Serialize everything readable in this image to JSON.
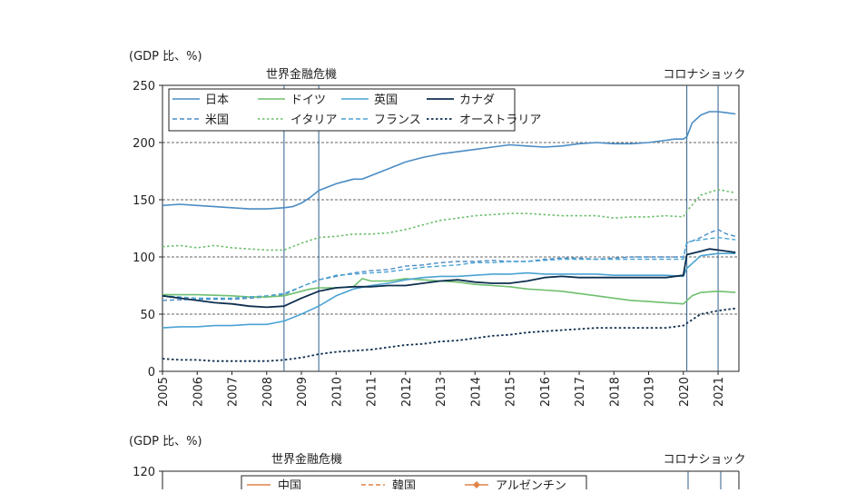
{
  "chart_data": [
    {
      "type": "line",
      "ylabel": "(GDP 比、%)",
      "xlim": [
        2005,
        2021.6
      ],
      "ylim": [
        0,
        250
      ],
      "yticks": [
        0,
        50,
        100,
        150,
        200,
        250
      ],
      "xticks": [
        "2005",
        "2006",
        "2007",
        "2008",
        "2009",
        "2010",
        "2011",
        "2012",
        "2013",
        "2014",
        "2015",
        "2016",
        "2017",
        "2018",
        "2019",
        "2020",
        "2021"
      ],
      "gridlines": [
        50,
        100,
        150,
        200
      ],
      "annotations": [
        {
          "label": "世界金融危機",
          "from": 2008.5,
          "to": 2009.5
        },
        {
          "label": "コロナショック",
          "from": 2020.1,
          "to": 2021.0
        }
      ],
      "legend_position": "top-left",
      "series": [
        {
          "name": "日本",
          "color": "#4a8cc4",
          "dash": "solid",
          "width": 1.6,
          "x": [
            2005,
            2005.5,
            2006,
            2006.5,
            2007,
            2007.5,
            2008,
            2008.5,
            2008.75,
            2009,
            2009.25,
            2009.5,
            2009.75,
            2010,
            2010.25,
            2010.5,
            2010.75,
            2011,
            2011.5,
            2012,
            2012.5,
            2013,
            2013.25,
            2013.5,
            2013.75,
            2014,
            2014.5,
            2015,
            2015.5,
            2016,
            2016.5,
            2017,
            2017.5,
            2018,
            2018.5,
            2019,
            2019.5,
            2019.75,
            2020,
            2020.1,
            2020.25,
            2020.5,
            2020.75,
            2021,
            2021.25,
            2021.5
          ],
          "y": [
            145,
            146,
            145,
            144,
            143,
            142,
            142,
            143,
            144,
            147,
            152,
            158,
            161,
            164,
            166,
            168,
            168,
            171,
            177,
            183,
            187,
            190,
            191,
            192,
            193,
            194,
            196,
            198,
            197,
            196,
            197,
            199,
            200,
            199,
            199,
            200,
            202,
            203,
            203,
            205,
            217,
            224,
            227,
            227,
            226,
            225
          ]
        },
        {
          "name": "米国",
          "color": "#4a8cc4",
          "dash": "dash",
          "width": 1.4,
          "x": [
            2005,
            2006,
            2007,
            2007.5,
            2008,
            2008.5,
            2009,
            2009.5,
            2010,
            2010.5,
            2011,
            2011.5,
            2012,
            2012.5,
            2013,
            2013.5,
            2014,
            2014.5,
            2015,
            2015.5,
            2016,
            2016.5,
            2017,
            2017.5,
            2018,
            2018.5,
            2019,
            2019.5,
            2020,
            2020.1,
            2020.5,
            2020.75,
            2021,
            2021.25,
            2021.5
          ],
          "y": [
            62,
            63,
            63,
            64,
            65,
            67,
            74,
            80,
            83,
            86,
            88,
            89,
            92,
            93,
            95,
            96,
            96,
            97,
            96,
            96,
            98,
            99,
            99,
            98,
            99,
            100,
            100,
            100,
            100,
            112,
            117,
            121,
            124,
            120,
            118
          ]
        },
        {
          "name": "ドイツ",
          "color": "#6fbf6f",
          "dash": "solid",
          "width": 1.6,
          "x": [
            2005,
            2006,
            2007,
            2007.5,
            2008,
            2008.5,
            2009,
            2009.25,
            2009.5,
            2010,
            2010.5,
            2010.75,
            2011,
            2011.5,
            2012,
            2012.5,
            2013,
            2013.5,
            2014,
            2014.5,
            2015,
            2015.5,
            2016,
            2016.5,
            2017,
            2017.5,
            2018,
            2018.5,
            2019,
            2019.5,
            2020,
            2020.25,
            2020.5,
            2021,
            2021.5
          ],
          "y": [
            67,
            67,
            66,
            65,
            65,
            66,
            70,
            72,
            73,
            73,
            74,
            81,
            79,
            79,
            81,
            80,
            79,
            78,
            76,
            75,
            74,
            72,
            71,
            70,
            68,
            66,
            64,
            62,
            61,
            60,
            59,
            66,
            69,
            70,
            69
          ]
        },
        {
          "name": "イタリア",
          "color": "#6fbf6f",
          "dash": "dot",
          "width": 1.6,
          "x": [
            2005,
            2005.5,
            2006,
            2006.5,
            2007,
            2007.5,
            2008,
            2008.5,
            2009,
            2009.5,
            2010,
            2010.5,
            2011,
            2011.5,
            2012,
            2012.5,
            2013,
            2013.5,
            2014,
            2014.5,
            2015,
            2015.5,
            2016,
            2016.5,
            2017,
            2017.5,
            2018,
            2018.5,
            2019,
            2019.5,
            2020,
            2020.1,
            2020.5,
            2021,
            2021.5
          ],
          "y": [
            109,
            110,
            108,
            110,
            108,
            107,
            106,
            106,
            112,
            117,
            118,
            120,
            120,
            121,
            124,
            128,
            132,
            134,
            136,
            137,
            138,
            138,
            137,
            136,
            136,
            136,
            134,
            135,
            135,
            136,
            135,
            140,
            154,
            159,
            156
          ]
        },
        {
          "name": "英国",
          "color": "#4ba3d3",
          "dash": "solid",
          "width": 1.6,
          "x": [
            2005,
            2005.5,
            2006,
            2006.5,
            2007,
            2007.5,
            2008,
            2008.5,
            2009,
            2009.5,
            2010,
            2010.5,
            2011,
            2011.5,
            2012,
            2012.5,
            2013,
            2013.5,
            2014,
            2014.5,
            2015,
            2015.5,
            2016,
            2016.5,
            2017,
            2017.5,
            2018,
            2018.5,
            2019,
            2019.5,
            2020,
            2020.1,
            2020.5,
            2021,
            2021.5
          ],
          "y": [
            38,
            39,
            39,
            40,
            40,
            41,
            41,
            44,
            50,
            57,
            66,
            72,
            75,
            77,
            80,
            82,
            83,
            83,
            84,
            85,
            85,
            86,
            85,
            85,
            85,
            85,
            84,
            84,
            84,
            84,
            83,
            90,
            101,
            103,
            103
          ]
        },
        {
          "name": "フランス",
          "color": "#4ba3d3",
          "dash": "dash",
          "width": 1.4,
          "x": [
            2005,
            2006,
            2007,
            2008,
            2008.5,
            2009,
            2009.5,
            2010,
            2010.5,
            2011,
            2011.5,
            2012,
            2012.5,
            2013,
            2013.5,
            2014,
            2014.5,
            2015,
            2015.5,
            2016,
            2016.5,
            2017,
            2017.5,
            2018,
            2018.5,
            2019,
            2019.5,
            2020,
            2020.1,
            2020.5,
            2021,
            2021.5
          ],
          "y": [
            66,
            64,
            64,
            66,
            68,
            74,
            80,
            84,
            85,
            86,
            87,
            89,
            91,
            92,
            93,
            95,
            95,
            96,
            96,
            97,
            98,
            98,
            98,
            98,
            98,
            98,
            98,
            98,
            113,
            115,
            117,
            115
          ]
        },
        {
          "name": "カナダ",
          "color": "#0e2f4f",
          "dash": "solid",
          "width": 1.8,
          "x": [
            2005,
            2005.5,
            2006,
            2006.5,
            2007,
            2007.5,
            2008,
            2008.5,
            2009,
            2009.5,
            2010,
            2010.5,
            2011,
            2011.5,
            2012,
            2012.5,
            2013,
            2013.5,
            2014,
            2014.5,
            2015,
            2015.5,
            2016,
            2016.5,
            2017,
            2017.5,
            2018,
            2018.5,
            2019,
            2019.5,
            2020,
            2020.1,
            2020.5,
            2020.75,
            2021,
            2021.5
          ],
          "y": [
            66,
            64,
            62,
            60,
            59,
            57,
            56,
            57,
            64,
            70,
            73,
            74,
            74,
            75,
            75,
            77,
            79,
            80,
            78,
            77,
            77,
            79,
            82,
            83,
            82,
            82,
            82,
            82,
            82,
            82,
            84,
            102,
            105,
            107,
            106,
            104
          ]
        },
        {
          "name": "オーストラリア",
          "color": "#0e2f4f",
          "dash": "dot",
          "width": 1.8,
          "x": [
            2005,
            2005.5,
            2006,
            2006.5,
            2007,
            2007.5,
            2008,
            2008.5,
            2009,
            2009.5,
            2010,
            2010.5,
            2011,
            2011.5,
            2012,
            2012.5,
            2013,
            2013.5,
            2014,
            2014.5,
            2015,
            2015.5,
            2016,
            2016.5,
            2017,
            2017.5,
            2018,
            2018.5,
            2019,
            2019.5,
            2020,
            2020.5,
            2021,
            2021.5
          ],
          "y": [
            11,
            10,
            10,
            9,
            9,
            9,
            9,
            10,
            12,
            15,
            17,
            18,
            19,
            21,
            23,
            24,
            26,
            27,
            29,
            31,
            32,
            34,
            35,
            36,
            37,
            38,
            38,
            38,
            38,
            38,
            40,
            50,
            53,
            55
          ]
        }
      ]
    },
    {
      "type": "line",
      "ylabel": "(GDP 比、%)",
      "ylim_top_label": "120",
      "annotations": [
        {
          "label": "世界金融危機"
        },
        {
          "label": "コロナショック"
        }
      ],
      "series": [
        {
          "name": "中国",
          "color": "#e0844a",
          "dash": "solid"
        },
        {
          "name": "韓国",
          "color": "#e0844a",
          "dash": "dash"
        },
        {
          "name": "アルゼンチン",
          "color": "#e0844a",
          "dash": "solid",
          "marker": "diamond"
        }
      ]
    }
  ]
}
